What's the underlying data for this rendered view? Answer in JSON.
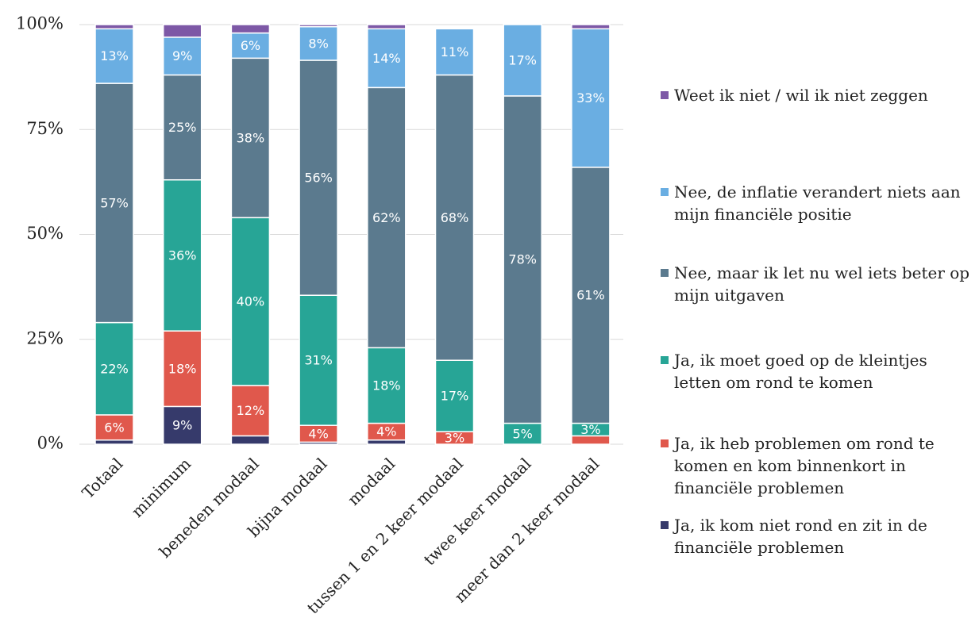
{
  "chart_data": {
    "type": "stacked_bar",
    "categories": [
      "Totaal",
      "minimum",
      "beneden modaal",
      "bijna modaal",
      "modaal",
      "tussen 1 en 2 keer modaal",
      "twee keer modaal",
      "meer dan 2 keer modaal"
    ],
    "series": [
      {
        "name": "Ja, ik kom niet rond en zit in de financiële problemen",
        "color": "#363a6b",
        "values": [
          1,
          9,
          2,
          0.5,
          1,
          0,
          0,
          0
        ],
        "value_labels": [
          null,
          "9%",
          null,
          null,
          null,
          null,
          null,
          null
        ]
      },
      {
        "name": "Ja, ik heb problemen om rond te komen en kom binnenkort in financiële problemen",
        "color": "#e0584c",
        "values": [
          6,
          18,
          12,
          4,
          4,
          3,
          0,
          2
        ],
        "value_labels": [
          "6%",
          "18%",
          "12%",
          "4%",
          "4%",
          "3%",
          null,
          null
        ]
      },
      {
        "name": "Ja, ik moet goed op de kleintjes letten om rond te komen",
        "color": "#27a596",
        "values": [
          22,
          36,
          40,
          31,
          18,
          17,
          5,
          3
        ],
        "value_labels": [
          "22%",
          "36%",
          "40%",
          "31%",
          "18%",
          "17%",
          "5%",
          "3%"
        ]
      },
      {
        "name": "Nee, maar ik let nu wel iets beter op mijn uitgaven",
        "color": "#5b7a8e",
        "values": [
          57,
          25,
          38,
          56,
          62,
          68,
          78,
          61
        ],
        "value_labels": [
          "57%",
          "25%",
          "38%",
          "56%",
          "62%",
          "68%",
          "78%",
          "61%"
        ]
      },
      {
        "name": "Nee, de inflatie verandert niets aan mijn financiële positie",
        "color": "#6aaee2",
        "values": [
          13,
          9,
          6,
          8,
          14,
          11,
          17,
          33
        ],
        "value_labels": [
          "13%",
          "9%",
          "6%",
          "8%",
          "14%",
          "11%",
          "17%",
          "33%"
        ]
      },
      {
        "name": "Weet ik niet / wil ik niet zeggen",
        "color": "#7d58a6",
        "values": [
          1,
          3,
          2,
          0.5,
          1,
          0,
          0,
          1
        ],
        "value_labels": [
          null,
          null,
          null,
          null,
          null,
          null,
          null,
          null
        ]
      }
    ],
    "ylim": [
      0,
      100
    ],
    "yticks": [
      {
        "value": 0,
        "label": "0%"
      },
      {
        "value": 25,
        "label": "25%"
      },
      {
        "value": 50,
        "label": "50%"
      },
      {
        "value": 75,
        "label": "75%"
      },
      {
        "value": 100,
        "label": "100%"
      }
    ],
    "grid": true,
    "legend": "right"
  }
}
